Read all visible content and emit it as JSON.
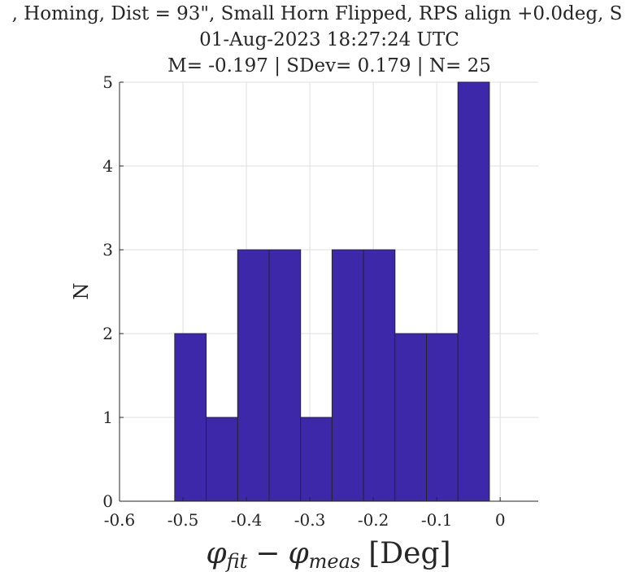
{
  "chart_data": {
    "type": "bar",
    "title_lines": [
      ", Homing, Dist = 93\", Small Horn Flipped, RPS align +0.0deg, S",
      "01-Aug-2023 18:27:24 UTC",
      "M= -0.197 | SDev= 0.179 | N= 25"
    ],
    "xlabel": "φfit − φmeas [Deg]",
    "xlabel_parts": {
      "phi": "φ",
      "sub1": "fit",
      "minus": "−",
      "sub2": "meas",
      "unit": "[Deg]"
    },
    "ylabel": "N",
    "xlim": [
      -0.6,
      0.06
    ],
    "ylim": [
      0,
      5
    ],
    "xticks": [
      -0.6,
      -0.5,
      -0.4,
      -0.3,
      -0.2,
      -0.1,
      0
    ],
    "xtick_labels": [
      "-0.6",
      "-0.5",
      "-0.4",
      "-0.3",
      "-0.2",
      "-0.1",
      "0"
    ],
    "yticks": [
      0,
      1,
      2,
      3,
      4,
      5
    ],
    "ytick_labels": [
      "0",
      "1",
      "2",
      "3",
      "4",
      "5"
    ],
    "grid": true,
    "bar_color": "#3c28a8",
    "bins": [
      {
        "x0": -0.513,
        "x1": -0.4634,
        "value": 2
      },
      {
        "x0": -0.4634,
        "x1": -0.4138,
        "value": 1
      },
      {
        "x0": -0.4138,
        "x1": -0.3642,
        "value": 3
      },
      {
        "x0": -0.3642,
        "x1": -0.3146,
        "value": 3
      },
      {
        "x0": -0.3146,
        "x1": -0.265,
        "value": 1
      },
      {
        "x0": -0.265,
        "x1": -0.2154,
        "value": 3
      },
      {
        "x0": -0.2154,
        "x1": -0.1658,
        "value": 3
      },
      {
        "x0": -0.1658,
        "x1": -0.1162,
        "value": 2
      },
      {
        "x0": -0.1162,
        "x1": -0.0666,
        "value": 2
      },
      {
        "x0": -0.0666,
        "x1": -0.017,
        "value": 5
      }
    ]
  }
}
